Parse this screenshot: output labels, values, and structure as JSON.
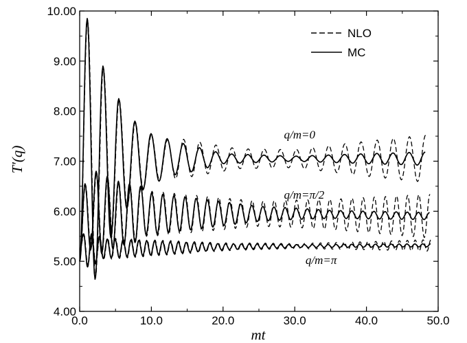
{
  "chart_data": {
    "type": "line",
    "xlabel": "mt",
    "ylabel": "T′(q)",
    "xlim": [
      0.0,
      50.0
    ],
    "ylim": [
      4.0,
      10.0
    ],
    "xticks": [
      "0.0",
      "10.0",
      "20.0",
      "30.0",
      "40.0",
      "50.0"
    ],
    "yticks": [
      "4.00",
      "5.00",
      "6.00",
      "7.00",
      "8.00",
      "9.00",
      "10.00"
    ],
    "grid": false,
    "legend": {
      "placement": "top-right",
      "entries": [
        {
          "label": "NLO",
          "style": "dashed"
        },
        {
          "label": "MC",
          "style": "solid"
        }
      ]
    },
    "annotations": [
      {
        "text": "q/m=0",
        "x": 28.5,
        "y": 7.45
      },
      {
        "text": "q/m=π/2",
        "x": 28.5,
        "y": 6.25
      },
      {
        "text": "q/m=π",
        "x": 31.5,
        "y": 4.95
      }
    ],
    "curves": [
      {
        "annotation": "q/m=0",
        "period": 2.25,
        "peaks": [
          [
            1.05,
            9.85
          ],
          [
            3.25,
            8.9
          ],
          [
            5.45,
            8.25
          ],
          [
            7.7,
            7.8
          ],
          [
            9.95,
            7.55
          ],
          [
            12.2,
            7.45
          ]
        ],
        "mean": [
          [
            0,
            5.0
          ],
          [
            1.0,
            7.0
          ],
          [
            8.0,
            7.05
          ],
          [
            50.0,
            7.05
          ]
        ],
        "nlo_amp": [
          [
            14.0,
            0.4
          ],
          [
            22.0,
            0.2
          ],
          [
            30.0,
            0.18
          ],
          [
            40.0,
            0.35
          ],
          [
            50.0,
            0.5
          ]
        ],
        "mc_amp": [
          [
            14.0,
            0.32
          ],
          [
            20.0,
            0.1
          ],
          [
            30.0,
            0.05
          ],
          [
            40.0,
            0.1
          ],
          [
            50.0,
            0.14
          ]
        ]
      },
      {
        "annotation": "q/m=π/2",
        "period": 1.55,
        "peaks": [
          [
            0.75,
            6.55
          ],
          [
            2.3,
            6.8
          ],
          [
            3.85,
            6.7
          ],
          [
            5.4,
            6.6
          ],
          [
            6.95,
            6.55
          ],
          [
            8.5,
            6.5
          ]
        ],
        "mean": [
          [
            0,
            5.0
          ],
          [
            1.0,
            5.95
          ],
          [
            10.0,
            5.95
          ],
          [
            30.0,
            5.95
          ],
          [
            50.0,
            5.9
          ]
        ],
        "nlo_amp": [
          [
            10.0,
            0.45
          ],
          [
            25.0,
            0.25
          ],
          [
            35.0,
            0.3
          ],
          [
            50.0,
            0.45
          ]
        ],
        "mc_amp": [
          [
            10.0,
            0.42
          ],
          [
            25.0,
            0.15
          ],
          [
            35.0,
            0.08
          ],
          [
            50.0,
            0.07
          ]
        ]
      },
      {
        "annotation": "q/m=π",
        "period": 1.1,
        "peaks": [
          [
            0.55,
            5.55
          ],
          [
            1.65,
            5.55
          ],
          [
            2.75,
            5.5
          ]
        ],
        "mean": [
          [
            0,
            5.2
          ],
          [
            3.0,
            5.25
          ],
          [
            25.0,
            5.3
          ],
          [
            50.0,
            5.32
          ]
        ],
        "nlo_amp": [
          [
            3.0,
            0.22
          ],
          [
            20.0,
            0.08
          ],
          [
            30.0,
            0.05
          ],
          [
            40.0,
            0.08
          ],
          [
            50.0,
            0.12
          ]
        ],
        "mc_amp": [
          [
            3.0,
            0.2
          ],
          [
            20.0,
            0.06
          ],
          [
            30.0,
            0.03
          ],
          [
            50.0,
            0.03
          ]
        ]
      }
    ]
  }
}
